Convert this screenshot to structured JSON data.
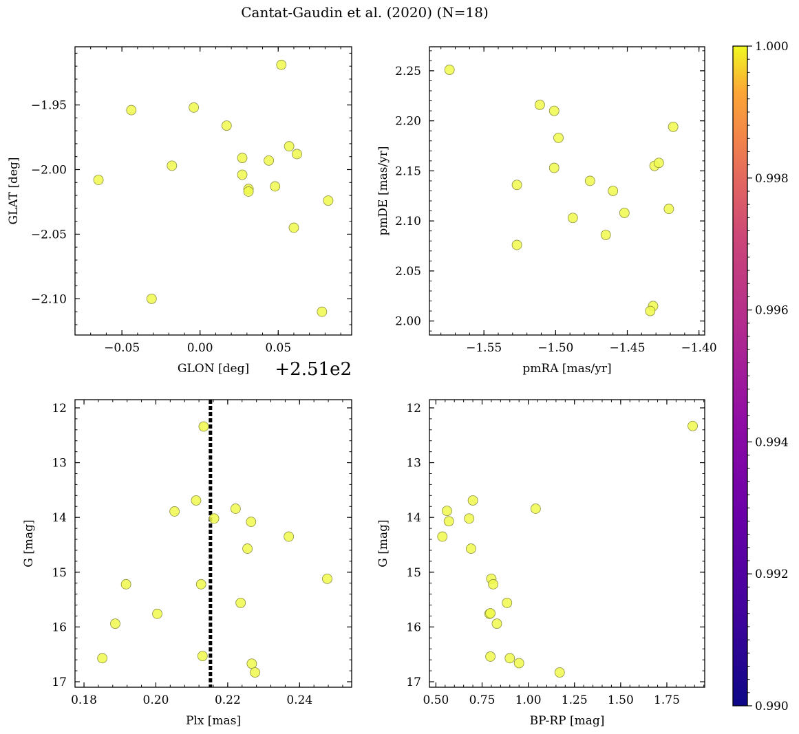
{
  "figure": {
    "title": "Cantat-Gaudin et al. (2020) (N=18)"
  },
  "colors": {
    "point": "#f0f94d",
    "point_edge": "#8a8f3a",
    "vline": "#000000"
  },
  "colorbar": {
    "min": 0.99,
    "max": 1.0,
    "ticks": [
      0.99,
      0.992,
      0.994,
      0.996,
      0.998,
      1.0
    ],
    "tick_labels": [
      "0.990",
      "0.992",
      "0.994",
      "0.996",
      "0.998",
      "1.000"
    ],
    "colormap": "plasma"
  },
  "chart_data": [
    {
      "type": "scatter",
      "xlabel": "GLON [deg]",
      "ylabel": "GLAT [deg]",
      "offset_label": "+2.51e2",
      "xlim": [
        -0.08,
        0.097
      ],
      "ylim": [
        -2.128,
        -1.905
      ],
      "yinvert": false,
      "xticks": [
        -0.05,
        0.0,
        0.05
      ],
      "xtick_labels": [
        "−0.05",
        "0.00",
        "0.05"
      ],
      "yticks": [
        -1.95,
        -2.0,
        -2.05,
        -2.1
      ],
      "ytick_labels": [
        "−1.95",
        "−2.00",
        "−2.05",
        "−2.10"
      ],
      "x": [
        0.052,
        -0.044,
        -0.004,
        0.017,
        -0.065,
        -0.018,
        0.027,
        0.027,
        0.031,
        0.031,
        0.044,
        0.048,
        0.057,
        0.062,
        0.082,
        0.06,
        -0.031,
        0.078
      ],
      "y": [
        -1.919,
        -1.954,
        -1.952,
        -1.966,
        -2.008,
        -1.997,
        -1.991,
        -2.004,
        -2.015,
        -2.017,
        -1.993,
        -2.013,
        -1.982,
        -1.988,
        -2.024,
        -2.045,
        -2.1,
        -2.11
      ]
    },
    {
      "type": "scatter",
      "xlabel": "pmRA [mas/yr]",
      "ylabel": "pmDE [mas/yr]",
      "xlim": [
        -1.588,
        -1.396
      ],
      "ylim": [
        1.986,
        2.274
      ],
      "yinvert": false,
      "xticks": [
        -1.55,
        -1.5,
        -1.45,
        -1.4
      ],
      "xtick_labels": [
        "−1.55",
        "−1.50",
        "−1.45",
        "−1.40"
      ],
      "yticks": [
        2.0,
        2.05,
        2.1,
        2.15,
        2.2,
        2.25
      ],
      "ytick_labels": [
        "2.00",
        "2.05",
        "2.10",
        "2.15",
        "2.20",
        "2.25"
      ],
      "x": [
        -1.574,
        -1.511,
        -1.501,
        -1.498,
        -1.501,
        -1.527,
        -1.476,
        -1.46,
        -1.488,
        -1.452,
        -1.465,
        -1.431,
        -1.428,
        -1.418,
        -1.421,
        -1.432,
        -1.434,
        -1.527
      ],
      "y": [
        2.251,
        2.216,
        2.21,
        2.183,
        2.153,
        2.136,
        2.14,
        2.13,
        2.103,
        2.108,
        2.086,
        2.155,
        2.158,
        2.194,
        2.112,
        2.015,
        2.01,
        2.076
      ]
    },
    {
      "type": "scatter",
      "xlabel": "Plx [mas]",
      "ylabel": "G [mag]",
      "xlim": [
        0.1775,
        0.2545
      ],
      "ylim": [
        11.85,
        17.1
      ],
      "yinvert": true,
      "vline": 0.2152,
      "xticks": [
        0.18,
        0.2,
        0.22,
        0.24
      ],
      "xtick_labels": [
        "0.18",
        "0.20",
        "0.22",
        "0.24"
      ],
      "yticks": [
        12,
        13,
        14,
        15,
        16,
        17
      ],
      "ytick_labels": [
        "12",
        "13",
        "14",
        "15",
        "16",
        "17"
      ],
      "x": [
        0.2133,
        0.2112,
        0.2052,
        0.2222,
        0.2162,
        0.2265,
        0.237,
        0.2255,
        0.2477,
        0.1917,
        0.2126,
        0.2236,
        0.2004,
        0.1887,
        0.1851,
        0.213,
        0.2267,
        0.2276
      ],
      "y": [
        12.34,
        13.69,
        13.89,
        13.84,
        14.02,
        14.08,
        14.35,
        14.57,
        15.12,
        15.22,
        15.22,
        15.56,
        15.76,
        15.94,
        16.57,
        16.53,
        16.67,
        16.83
      ]
    },
    {
      "type": "scatter",
      "xlabel": "BP-RP [mag]",
      "ylabel": "G [mag]",
      "xlim": [
        0.465,
        1.955
      ],
      "ylim": [
        11.85,
        17.1
      ],
      "yinvert": true,
      "xticks": [
        0.5,
        0.75,
        1.0,
        1.25,
        1.5,
        1.75
      ],
      "xtick_labels": [
        "0.50",
        "0.75",
        "1.00",
        "1.25",
        "1.50",
        "1.75"
      ],
      "yticks": [
        12,
        13,
        14,
        15,
        16,
        17
      ],
      "ytick_labels": [
        "12",
        "13",
        "14",
        "15",
        "16",
        "17"
      ],
      "x": [
        1.89,
        0.7,
        1.04,
        0.56,
        0.57,
        0.68,
        0.535,
        0.69,
        0.8,
        0.81,
        0.885,
        0.79,
        0.83,
        0.795,
        0.9,
        0.95,
        1.17,
        0.795
      ],
      "y": [
        12.33,
        13.69,
        13.84,
        13.88,
        14.07,
        14.02,
        14.35,
        14.57,
        15.12,
        15.22,
        15.56,
        15.76,
        15.94,
        15.75,
        16.57,
        16.66,
        16.83,
        16.54
      ]
    }
  ]
}
